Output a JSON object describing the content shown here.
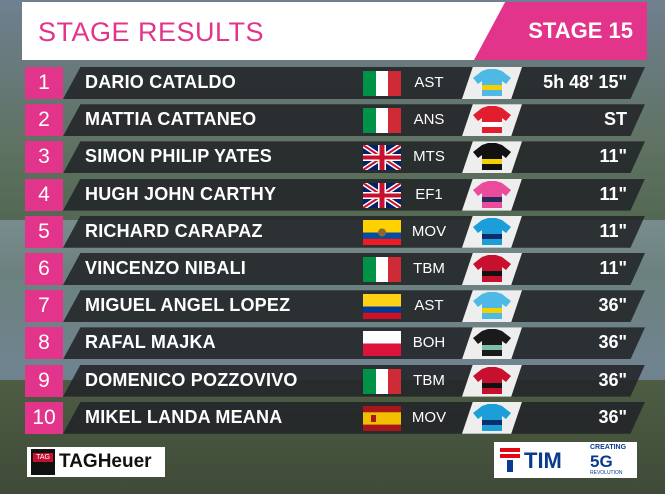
{
  "header": {
    "title": "STAGE RESULTS",
    "stage": "STAGE 15"
  },
  "colors": {
    "accent": "#e2348a",
    "band": "#222428"
  },
  "rows": [
    {
      "pos": "1",
      "name": "DARIO CATALDO",
      "flag": "italy",
      "team": "AST",
      "jersey": "astana-jersey-icon",
      "time": "5h 48' 15\""
    },
    {
      "pos": "2",
      "name": "MATTIA CATTANEO",
      "flag": "italy",
      "team": "ANS",
      "jersey": "androni-jersey-icon",
      "time": "ST"
    },
    {
      "pos": "3",
      "name": "SIMON PHILIP YATES",
      "flag": "uk",
      "team": "MTS",
      "jersey": "mitchelton-jersey-icon",
      "time": "11\""
    },
    {
      "pos": "4",
      "name": "HUGH JOHN CARTHY",
      "flag": "uk",
      "team": "EF1",
      "jersey": "ef-jersey-icon",
      "time": "11\""
    },
    {
      "pos": "5",
      "name": "RICHARD CARAPAZ",
      "flag": "ecuador",
      "team": "MOV",
      "jersey": "movistar-jersey-icon",
      "time": "11\""
    },
    {
      "pos": "6",
      "name": "VINCENZO NIBALI",
      "flag": "italy",
      "team": "TBM",
      "jersey": "bahrain-jersey-icon",
      "time": "11\""
    },
    {
      "pos": "7",
      "name": "MIGUEL ANGEL LOPEZ",
      "flag": "colombia",
      "team": "AST",
      "jersey": "astana-jersey-icon",
      "time": "36\""
    },
    {
      "pos": "8",
      "name": "RAFAL MAJKA",
      "flag": "poland",
      "team": "BOH",
      "jersey": "bora-jersey-icon",
      "time": "36\""
    },
    {
      "pos": "9",
      "name": "DOMENICO POZZOVIVO",
      "flag": "italy",
      "team": "TBM",
      "jersey": "bahrain-jersey-icon",
      "time": "36\""
    },
    {
      "pos": "10",
      "name": "MIKEL LANDA MEANA",
      "flag": "spain",
      "team": "MOV",
      "jersey": "movistar-jersey-icon",
      "time": "36\""
    }
  ],
  "sponsors": {
    "tag_badge": "TAG",
    "tag_text": "TAGHeuer",
    "tim_text": "TIM",
    "tim_creating": "CREATING",
    "tim_5g": "5G",
    "tim_revolution": "REVOLUTION"
  }
}
